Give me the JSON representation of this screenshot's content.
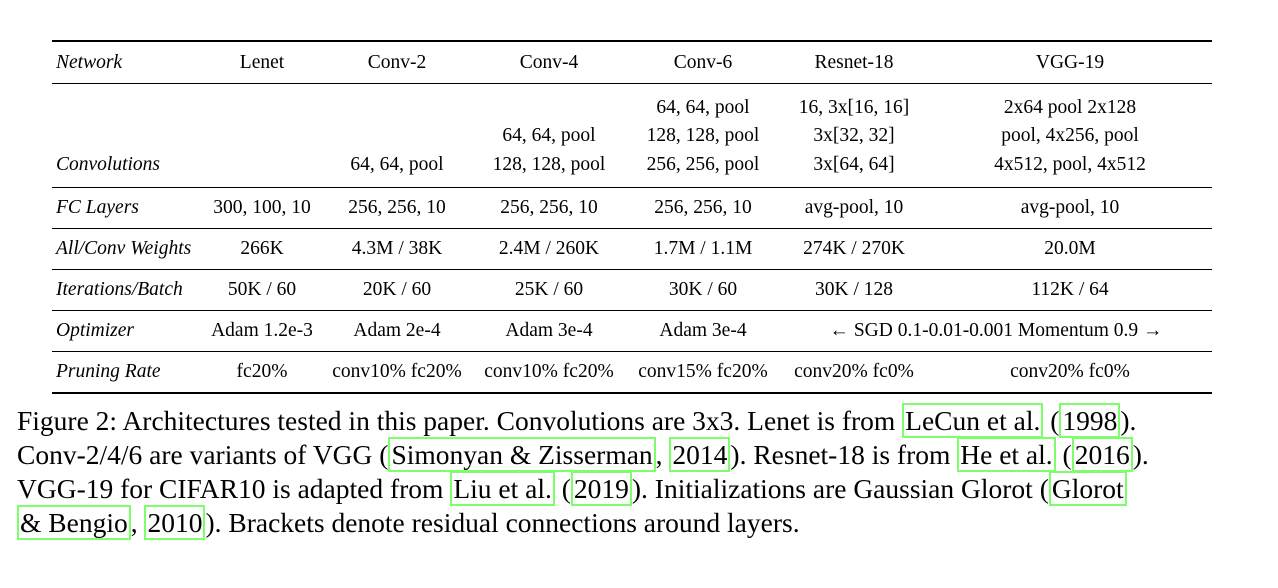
{
  "table": {
    "header": [
      "Network",
      "Lenet",
      "Conv-2",
      "Conv-4",
      "Conv-6",
      "Resnet-18",
      "VGG-19"
    ],
    "convolutions": {
      "label": "Convolutions",
      "cells": [
        [],
        [
          "64, 64, pool"
        ],
        [
          "64, 64, pool",
          "128, 128, pool"
        ],
        [
          "64, 64, pool",
          "128, 128, pool",
          "256, 256, pool"
        ],
        [
          "16, 3x[16, 16]",
          "3x[32, 32]",
          "3x[64, 64]"
        ],
        [
          "2x64 pool 2x128",
          "pool, 4x256, pool",
          "4x512, pool, 4x512"
        ]
      ]
    },
    "fc_layers": {
      "label": "FC Layers",
      "cells": [
        "300, 100, 10",
        "256, 256, 10",
        "256, 256, 10",
        "256, 256, 10",
        "avg-pool, 10",
        "avg-pool, 10"
      ]
    },
    "weights": {
      "label": "All/Conv Weights",
      "cells": [
        "266K",
        "4.3M / 38K",
        "2.4M / 260K",
        "1.7M / 1.1M",
        "274K / 270K",
        "20.0M"
      ]
    },
    "iterations": {
      "label": "Iterations/Batch",
      "cells": [
        "50K / 60",
        "20K / 60",
        "25K / 60",
        "30K / 60",
        "30K / 128",
        "112K / 64"
      ]
    },
    "optimizer": {
      "label": "Optimizer",
      "cells": [
        "Adam 1.2e-3",
        "Adam 2e-4",
        "Adam 3e-4",
        "Adam 3e-4"
      ],
      "span_text": "← SGD 0.1-0.01-0.001 Momentum 0.9 →"
    },
    "pruning": {
      "label": "Pruning Rate",
      "cells": [
        "fc20%",
        "conv10% fc20%",
        "conv10% fc20%",
        "conv15% fc20%",
        "conv20% fc0%",
        "conv20% fc0%"
      ]
    }
  },
  "caption": {
    "line1_a": "Figure 2: Architectures tested in this paper. Convolutions are 3x3. Lenet is from ",
    "cite1_author": "LeCun et al.",
    "sep1": " (",
    "cite1_year": "1998",
    "line1_end": ").",
    "line2_a": "Conv-2/4/6 are variants of VGG (",
    "cite2_author": "Simonyan & Zisserman",
    "sep2": ", ",
    "cite2_year": "2014",
    "line2_b": "). Resnet-18 is from ",
    "cite3_author": "He et al.",
    "sep3": " (",
    "cite3_year": "2016",
    "line2_end": ").",
    "line3_a": "VGG-19 for CIFAR10 is adapted from ",
    "cite4_author": "Liu et al.",
    "sep4": " (",
    "cite4_year": "2019",
    "line3_b": "). Initializations are Gaussian Glorot (",
    "cite5_author_a": "Glorot",
    "cite5_author_b": "& Bengio",
    "sep5": ", ",
    "cite5_year": "2010",
    "line4_end": "). Brackets denote residual connections around layers."
  },
  "colors": {
    "citation_box": "#7cff6b",
    "text": "#000000"
  }
}
